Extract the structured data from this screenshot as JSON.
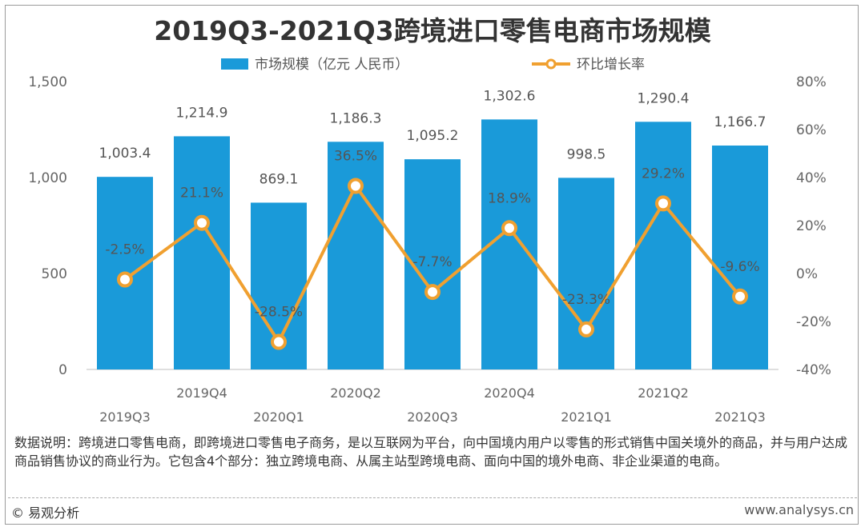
{
  "title": "2019Q3-2021Q3跨境进口零售电商市场规模",
  "legend": {
    "bar_label": "市场规模（亿元 人民币）",
    "line_label": "环比增长率"
  },
  "colors": {
    "bar": "#1a9ad9",
    "line": "#f0a030",
    "marker_fill": "#ffffff",
    "grid": "#dddddd",
    "title": "#333333"
  },
  "chart_data": {
    "type": "bar",
    "title": "2019Q3-2021Q3跨境进口零售电商市场规模",
    "categories": [
      "2019Q3",
      "2019Q4",
      "2020Q1",
      "2020Q2",
      "2020Q3",
      "2020Q4",
      "2021Q1",
      "2021Q2",
      "2021Q3"
    ],
    "series": [
      {
        "name": "市场规模（亿元 人民币）",
        "type": "bar",
        "axis": "left",
        "values": [
          1003.4,
          1214.9,
          869.1,
          1186.3,
          1095.2,
          1302.6,
          998.5,
          1290.4,
          1166.7
        ],
        "labels": [
          "1,003.4",
          "1,214.9",
          "869.1",
          "1,186.3",
          "1,095.2",
          "1,302.6",
          "998.5",
          "1,290.4",
          "1,166.7"
        ]
      },
      {
        "name": "环比增长率",
        "type": "line",
        "axis": "right",
        "values": [
          -2.5,
          21.1,
          -28.5,
          36.5,
          -7.7,
          18.9,
          -23.3,
          29.2,
          -9.6
        ],
        "labels": [
          "-2.5%",
          "21.1%",
          "-28.5%",
          "36.5%",
          "-7.7%",
          "18.9%",
          "-23.3%",
          "29.2%",
          "-9.6%"
        ]
      }
    ],
    "y_left": {
      "min": 0,
      "max": 1500,
      "ticks": [
        "0",
        "500",
        "1,000",
        "1,500"
      ]
    },
    "y_right": {
      "min": -40,
      "max": 80,
      "ticks": [
        "-40%",
        "-20%",
        "0%",
        "20%",
        "40%",
        "60%",
        "80%"
      ]
    },
    "grid": false,
    "legend_position": "top"
  },
  "note": "数据说明：跨境进口零售电商，即跨境进口零售电子商务，是以互联网为平台，向中国境内用户以零售的形式销售中国关境外的商品，并与用户达成商品销售协议的商业行为。它包含4个部分：独立跨境电商、从属主站型跨境电商、面向中国的境外电商、非企业渠道的电商。",
  "footer": {
    "copyright": "© 易观分析",
    "site": "www.analysys.cn"
  }
}
